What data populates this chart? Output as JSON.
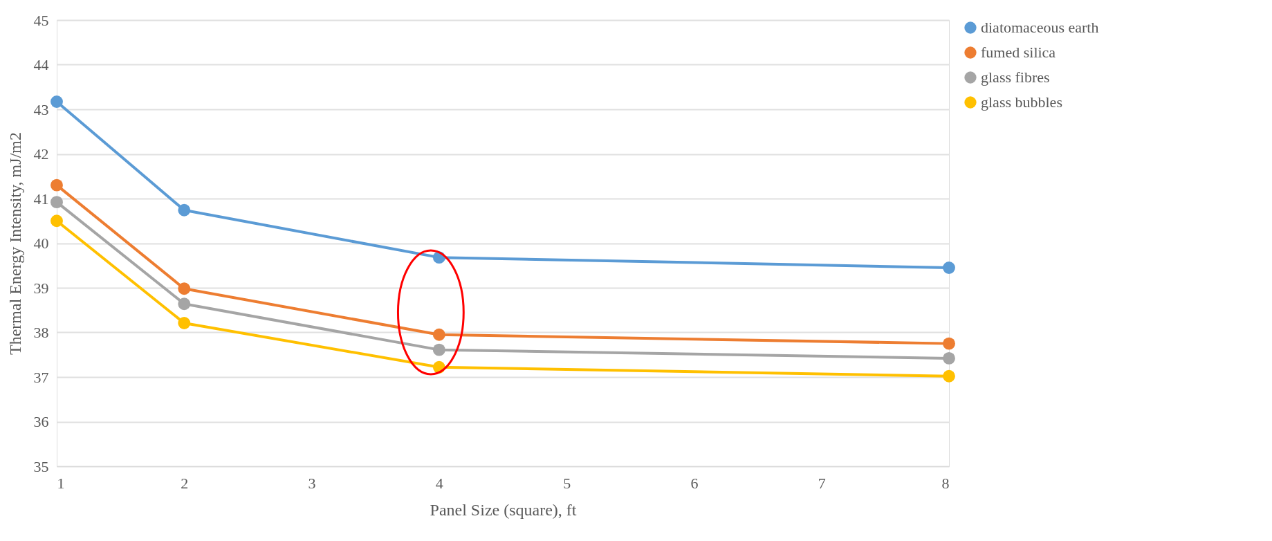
{
  "chart_data": {
    "type": "line",
    "xlabel": "Panel Size (square), ft",
    "ylabel": "Thermal Energy Intensity, mJ/m2",
    "x": [
      1,
      2,
      4,
      8
    ],
    "series": [
      {
        "name": "diatomaceous earth",
        "color": "#5b9bd5",
        "values": [
          43.17,
          40.74,
          39.68,
          39.45
        ]
      },
      {
        "name": "fumed silica",
        "color": "#ed7d31",
        "values": [
          41.3,
          38.98,
          37.95,
          37.75
        ]
      },
      {
        "name": "glass fibres",
        "color": "#a5a5a5",
        "values": [
          40.92,
          38.64,
          37.61,
          37.42
        ]
      },
      {
        "name": "glass bubbles",
        "color": "#ffc000",
        "values": [
          40.5,
          38.21,
          37.22,
          37.02
        ]
      }
    ],
    "xlim": [
      1,
      8
    ],
    "xticks": [
      1,
      2,
      3,
      4,
      5,
      6,
      7,
      8
    ],
    "ylim": [
      35,
      45
    ],
    "yticks": [
      35,
      36,
      37,
      38,
      39,
      40,
      41,
      42,
      43,
      44,
      45
    ],
    "grid": "y",
    "legend": "right",
    "marker": "circle",
    "line_style": "solid"
  }
}
